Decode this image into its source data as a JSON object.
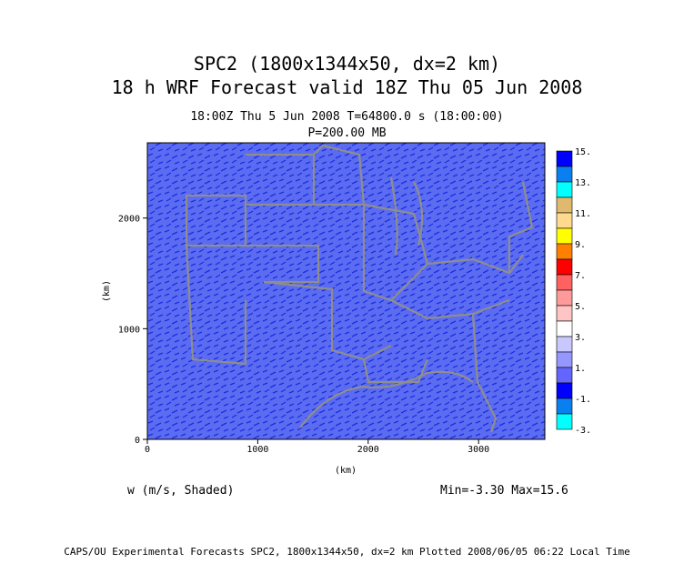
{
  "title_line1": "SPC2 (1800x1344x50, dx=2 km)",
  "title_line2": "18 h WRF Forecast valid 18Z Thu 05 Jun 2008",
  "subtitle_time": "18:00Z Thu  5 Jun 2008    T=64800.0 s (18:00:00)",
  "subtitle_level": "P=200.00 MB",
  "variable_label": "w (m/s, Shaded)",
  "min_max": "Min=-3.30 Max=15.6",
  "footer": "CAPS/OU Experimental Forecasts  SPC2, 1800x1344x50, dx=2 km  Plotted 2008/06/05 06:22 Local Time",
  "chart_data": {
    "type": "heatmap",
    "xlabel": "(km)",
    "ylabel": "(km)",
    "xlim": [
      0,
      3600
    ],
    "ylim": [
      0,
      2680
    ],
    "x_ticks": [
      0,
      1000,
      2000,
      3000
    ],
    "y_ticks": [
      0,
      1000,
      2000
    ],
    "field": "w (m/s, Shaded)",
    "min": -3.3,
    "max": 15.6,
    "dominant_value_range": [
      0,
      1
    ],
    "colorbar": {
      "labels": [
        "15.",
        "13.",
        "11.",
        "9.",
        "7.",
        "5.",
        "3.",
        "1.",
        "-1.",
        "-3."
      ],
      "colors": [
        "#0000ff",
        "#0a7ff0",
        "#00ffff",
        "#e0b96e",
        "#ffd98e",
        "#ffff00",
        "#ff8000",
        "#ff0000",
        "#ff6060",
        "#ff9a9a",
        "#ffc4c4",
        "#ffffff",
        "#c8c8ff",
        "#9696ff",
        "#6464ff",
        "#0000ff",
        "#0a7ff0",
        "#00ffff"
      ]
    },
    "background_color": "#5c6cf0",
    "boundary_color": "#9a9a9a"
  }
}
